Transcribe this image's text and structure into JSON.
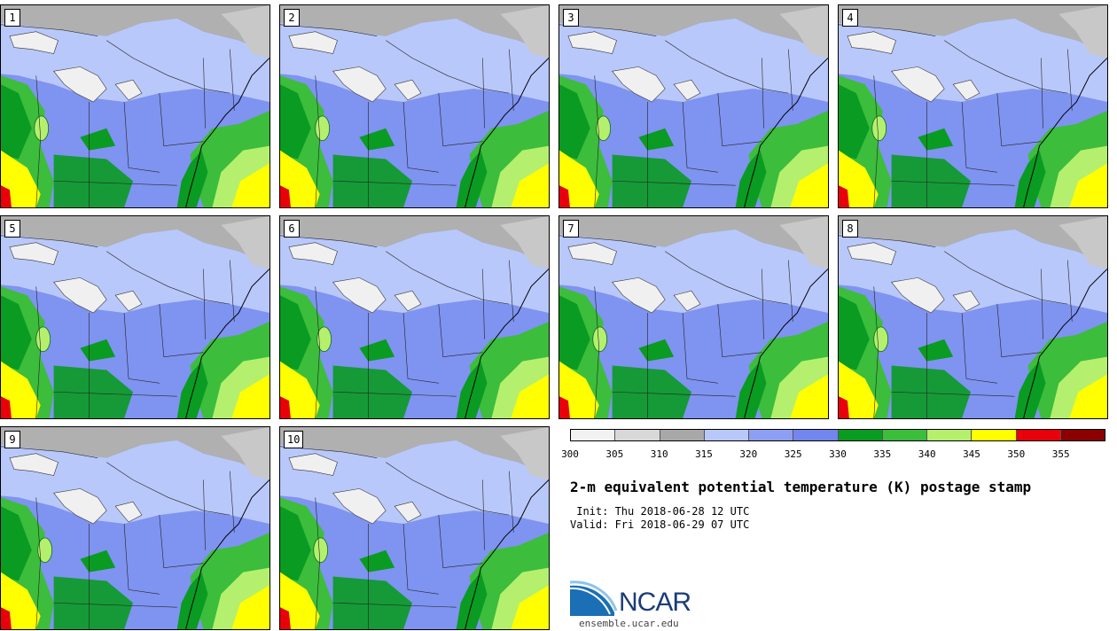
{
  "members": [
    "1",
    "2",
    "3",
    "4",
    "5",
    "6",
    "7",
    "8",
    "9",
    "10"
  ],
  "colorbar": {
    "unit": "K",
    "ticks": [
      "300",
      "305",
      "310",
      "315",
      "320",
      "325",
      "330",
      "335",
      "340",
      "345",
      "350",
      "355"
    ],
    "colors": [
      "#f2f2f2",
      "#d8d8d8",
      "#a8a8a8",
      "#b9c8fb",
      "#8c9ff2",
      "#7385ee",
      "#0a9b22",
      "#3cbd3c",
      "#b4f06e",
      "#ffff00",
      "#e8000a",
      "#8b0000"
    ]
  },
  "palette": {
    "land_grey": "#b0b0b0",
    "light_blue": "#b9c8fb",
    "mid_blue": "#7f93f0",
    "green_dark": "#0a9b22",
    "green_mid": "#3cbd3c",
    "green_light": "#b4f06e",
    "yellow": "#ffff00",
    "red": "#e8000a",
    "lake": "#f0f0f0",
    "ocean_grey": "#c8c8c8"
  },
  "title": "2-m equivalent potential temperature (K) postage stamp",
  "init_label": " Init: Thu 2018-06-28 12 UTC",
  "valid_label": "Valid: Fri 2018-06-29 07 UTC",
  "logo": {
    "text": "NCAR",
    "url": "ensemble.ucar.edu"
  }
}
